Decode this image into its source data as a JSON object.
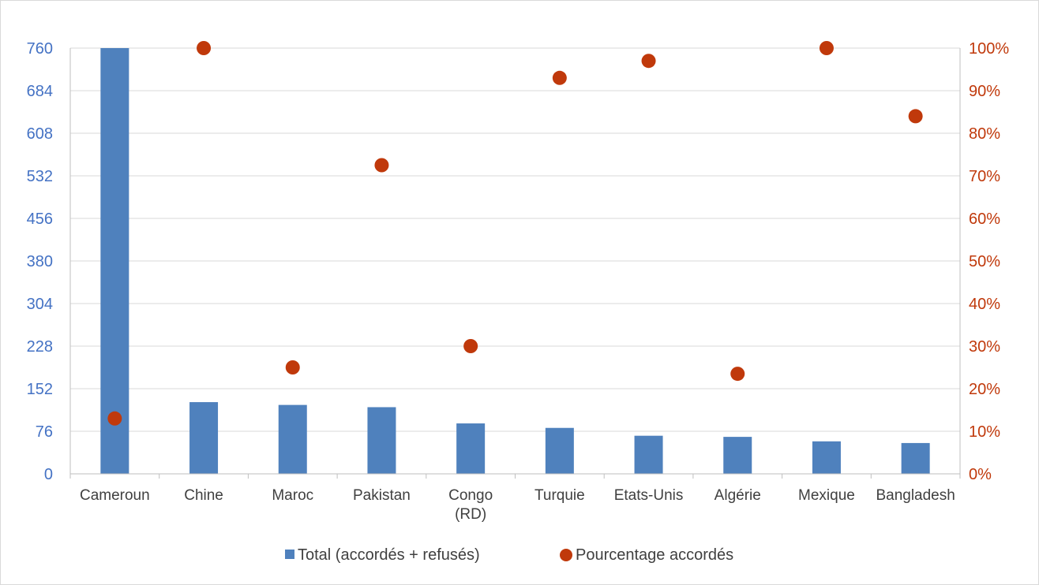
{
  "chart_data": {
    "type": "bar",
    "categories": [
      [
        "Cameroun"
      ],
      [
        "Chine"
      ],
      [
        "Maroc"
      ],
      [
        "Pakistan"
      ],
      [
        "Congo",
        "(RD)"
      ],
      [
        "Turquie"
      ],
      [
        "Etats-Unis"
      ],
      [
        "Algérie"
      ],
      [
        "Mexique"
      ],
      [
        "Bangladesh"
      ]
    ],
    "series": [
      {
        "name": "Total (accordés + refusés)",
        "type": "bar",
        "axis": "left",
        "color": "#4f81bd",
        "values": [
          760,
          128,
          123,
          119,
          90,
          82,
          68,
          66,
          58,
          55
        ]
      },
      {
        "name": "Pourcentage accordés",
        "type": "scatter",
        "axis": "right",
        "color": "#c0390b",
        "values": [
          13,
          100,
          25,
          72.5,
          30,
          93,
          97,
          23.5,
          100,
          84
        ]
      }
    ],
    "left_axis": {
      "ticks": [
        "0",
        "76",
        "152",
        "228",
        "304",
        "380",
        "456",
        "532",
        "608",
        "684",
        "760"
      ],
      "ylim": [
        0,
        760
      ],
      "color": "#4472c4"
    },
    "right_axis": {
      "ticks": [
        "0%",
        "10%",
        "20%",
        "30%",
        "40%",
        "50%",
        "60%",
        "70%",
        "80%",
        "90%",
        "100%"
      ],
      "ylim": [
        0,
        100
      ],
      "color": "#c0390b"
    },
    "grid": true,
    "legend": {
      "placement": "bottom",
      "entries": [
        "Total (accordés + refusés)",
        "Pourcentage accordés"
      ]
    }
  }
}
